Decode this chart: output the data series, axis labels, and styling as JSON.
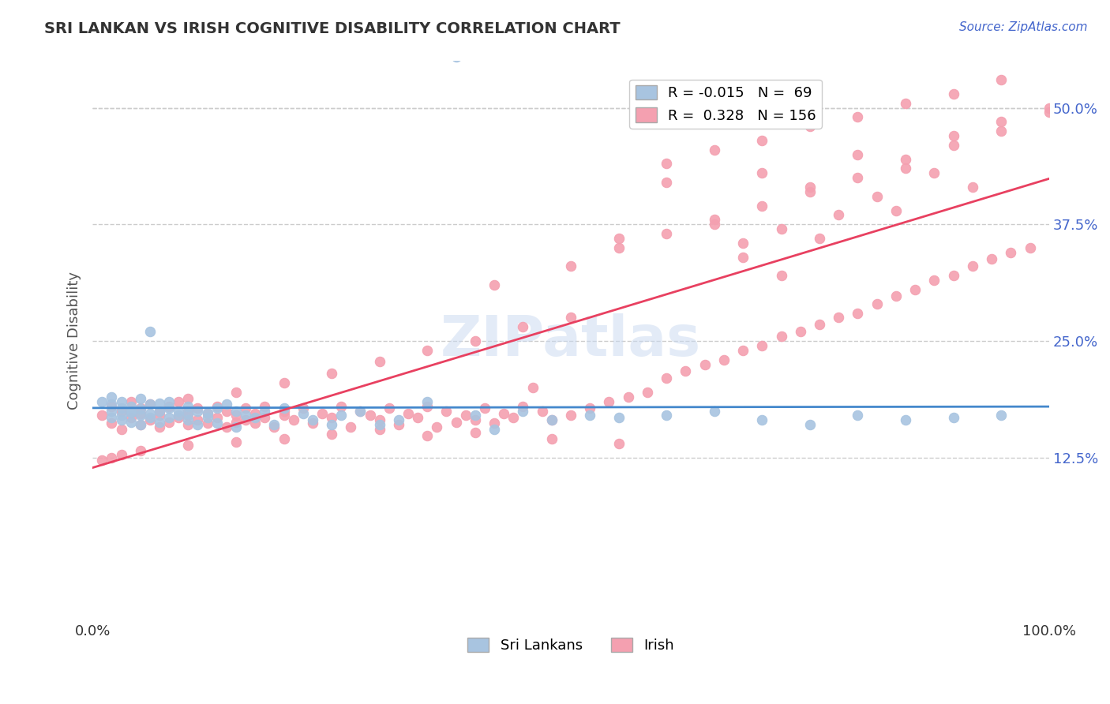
{
  "title": "SRI LANKAN VS IRISH COGNITIVE DISABILITY CORRELATION CHART",
  "source_text": "Source: ZipAtlas.com",
  "xlabel": "",
  "ylabel": "Cognitive Disability",
  "xlim": [
    0.0,
    1.0
  ],
  "ylim": [
    -0.05,
    0.55
  ],
  "x_tick_labels": [
    "0.0%",
    "100.0%"
  ],
  "y_tick_labels": [
    "12.5%",
    "25.0%",
    "37.5%",
    "50.0%"
  ],
  "y_tick_values": [
    0.125,
    0.25,
    0.375,
    0.5
  ],
  "background_color": "#ffffff",
  "grid_color": "#cccccc",
  "sri_lanka_color": "#a8c4e0",
  "irish_color": "#f4a0b0",
  "sri_lanka_line_color": "#4488cc",
  "irish_line_color": "#e84060",
  "legend_sri_lanka_label": "R = -0.015   N =  69",
  "legend_irish_label": "R =  0.328   N = 156",
  "bottom_legend_sri_lanka": "Sri Lankans",
  "bottom_legend_irish": "Irish",
  "sri_lanka_R": -0.015,
  "irish_R": 0.328,
  "watermark": "ZIPatlas",
  "sri_lanka_scatter_x": [
    0.01,
    0.02,
    0.02,
    0.02,
    0.02,
    0.03,
    0.03,
    0.03,
    0.03,
    0.04,
    0.04,
    0.04,
    0.04,
    0.05,
    0.05,
    0.05,
    0.05,
    0.06,
    0.06,
    0.06,
    0.06,
    0.07,
    0.07,
    0.07,
    0.08,
    0.08,
    0.08,
    0.09,
    0.09,
    0.1,
    0.1,
    0.1,
    0.11,
    0.11,
    0.12,
    0.12,
    0.13,
    0.13,
    0.14,
    0.15,
    0.15,
    0.16,
    0.17,
    0.18,
    0.19,
    0.2,
    0.22,
    0.23,
    0.25,
    0.26,
    0.28,
    0.3,
    0.32,
    0.35,
    0.38,
    0.4,
    0.42,
    0.45,
    0.48,
    0.52,
    0.55,
    0.6,
    0.65,
    0.7,
    0.75,
    0.8,
    0.85,
    0.9,
    0.95
  ],
  "sri_lanka_scatter_y": [
    0.185,
    0.175,
    0.168,
    0.19,
    0.182,
    0.178,
    0.17,
    0.165,
    0.185,
    0.173,
    0.18,
    0.163,
    0.175,
    0.17,
    0.188,
    0.16,
    0.177,
    0.168,
    0.182,
    0.172,
    0.26,
    0.175,
    0.163,
    0.183,
    0.178,
    0.168,
    0.185,
    0.17,
    0.175,
    0.18,
    0.165,
    0.172,
    0.175,
    0.16,
    0.168,
    0.173,
    0.178,
    0.162,
    0.182,
    0.175,
    0.158,
    0.17,
    0.168,
    0.175,
    0.16,
    0.178,
    0.172,
    0.165,
    0.16,
    0.17,
    0.175,
    0.16,
    0.165,
    0.185,
    0.555,
    0.17,
    0.155,
    0.175,
    0.165,
    0.17,
    0.168,
    0.17,
    0.175,
    0.165,
    0.16,
    0.17,
    0.165,
    0.168,
    0.17
  ],
  "irish_scatter_x": [
    0.01,
    0.02,
    0.02,
    0.03,
    0.03,
    0.04,
    0.04,
    0.05,
    0.05,
    0.05,
    0.06,
    0.06,
    0.07,
    0.07,
    0.07,
    0.08,
    0.08,
    0.09,
    0.09,
    0.1,
    0.1,
    0.1,
    0.11,
    0.11,
    0.12,
    0.12,
    0.13,
    0.13,
    0.14,
    0.14,
    0.15,
    0.15,
    0.16,
    0.16,
    0.17,
    0.17,
    0.18,
    0.18,
    0.19,
    0.2,
    0.2,
    0.21,
    0.22,
    0.23,
    0.24,
    0.25,
    0.26,
    0.27,
    0.28,
    0.29,
    0.3,
    0.31,
    0.32,
    0.33,
    0.34,
    0.35,
    0.36,
    0.37,
    0.38,
    0.39,
    0.4,
    0.41,
    0.42,
    0.43,
    0.44,
    0.45,
    0.46,
    0.47,
    0.48,
    0.5,
    0.52,
    0.54,
    0.56,
    0.58,
    0.6,
    0.62,
    0.64,
    0.66,
    0.68,
    0.7,
    0.72,
    0.74,
    0.76,
    0.78,
    0.8,
    0.82,
    0.84,
    0.86,
    0.88,
    0.9,
    0.92,
    0.94,
    0.96,
    0.98,
    1.0,
    0.42,
    0.5,
    0.55,
    0.6,
    0.65,
    0.7,
    0.75,
    0.8,
    0.85,
    0.9,
    0.95,
    0.78,
    0.82,
    0.68,
    0.72,
    0.55,
    0.48,
    0.4,
    0.35,
    0.3,
    0.25,
    0.2,
    0.15,
    0.1,
    0.05,
    0.03,
    0.02,
    0.01,
    0.6,
    0.65,
    0.7,
    0.75,
    0.8,
    0.85,
    0.9,
    0.95,
    0.5,
    0.45,
    0.4,
    0.35,
    0.3,
    0.25,
    0.2,
    0.15,
    0.1,
    0.6,
    0.7,
    0.8,
    0.9,
    0.55,
    0.65,
    0.75,
    0.85,
    0.95,
    1.0,
    0.88,
    0.92,
    0.76,
    0.84,
    0.72,
    0.68
  ],
  "irish_scatter_y": [
    0.17,
    0.162,
    0.18,
    0.155,
    0.175,
    0.168,
    0.185,
    0.16,
    0.172,
    0.178,
    0.165,
    0.182,
    0.158,
    0.17,
    0.175,
    0.163,
    0.18,
    0.168,
    0.185,
    0.16,
    0.175,
    0.17,
    0.165,
    0.178,
    0.162,
    0.172,
    0.168,
    0.18,
    0.158,
    0.175,
    0.163,
    0.17,
    0.165,
    0.178,
    0.162,
    0.172,
    0.168,
    0.18,
    0.158,
    0.17,
    0.175,
    0.165,
    0.178,
    0.162,
    0.172,
    0.168,
    0.18,
    0.158,
    0.175,
    0.17,
    0.165,
    0.178,
    0.16,
    0.172,
    0.168,
    0.18,
    0.158,
    0.175,
    0.163,
    0.17,
    0.165,
    0.178,
    0.162,
    0.172,
    0.168,
    0.18,
    0.2,
    0.175,
    0.165,
    0.17,
    0.178,
    0.185,
    0.19,
    0.195,
    0.21,
    0.218,
    0.225,
    0.23,
    0.24,
    0.245,
    0.255,
    0.26,
    0.268,
    0.275,
    0.28,
    0.29,
    0.298,
    0.305,
    0.315,
    0.32,
    0.33,
    0.338,
    0.345,
    0.35,
    0.495,
    0.31,
    0.33,
    0.35,
    0.365,
    0.38,
    0.395,
    0.41,
    0.425,
    0.445,
    0.46,
    0.475,
    0.385,
    0.405,
    0.355,
    0.37,
    0.14,
    0.145,
    0.152,
    0.148,
    0.155,
    0.15,
    0.145,
    0.142,
    0.138,
    0.132,
    0.128,
    0.125,
    0.122,
    0.44,
    0.455,
    0.465,
    0.48,
    0.49,
    0.505,
    0.515,
    0.53,
    0.275,
    0.265,
    0.25,
    0.24,
    0.228,
    0.215,
    0.205,
    0.195,
    0.188,
    0.42,
    0.43,
    0.45,
    0.47,
    0.36,
    0.375,
    0.415,
    0.435,
    0.485,
    0.5,
    0.43,
    0.415,
    0.36,
    0.39,
    0.32,
    0.34
  ]
}
